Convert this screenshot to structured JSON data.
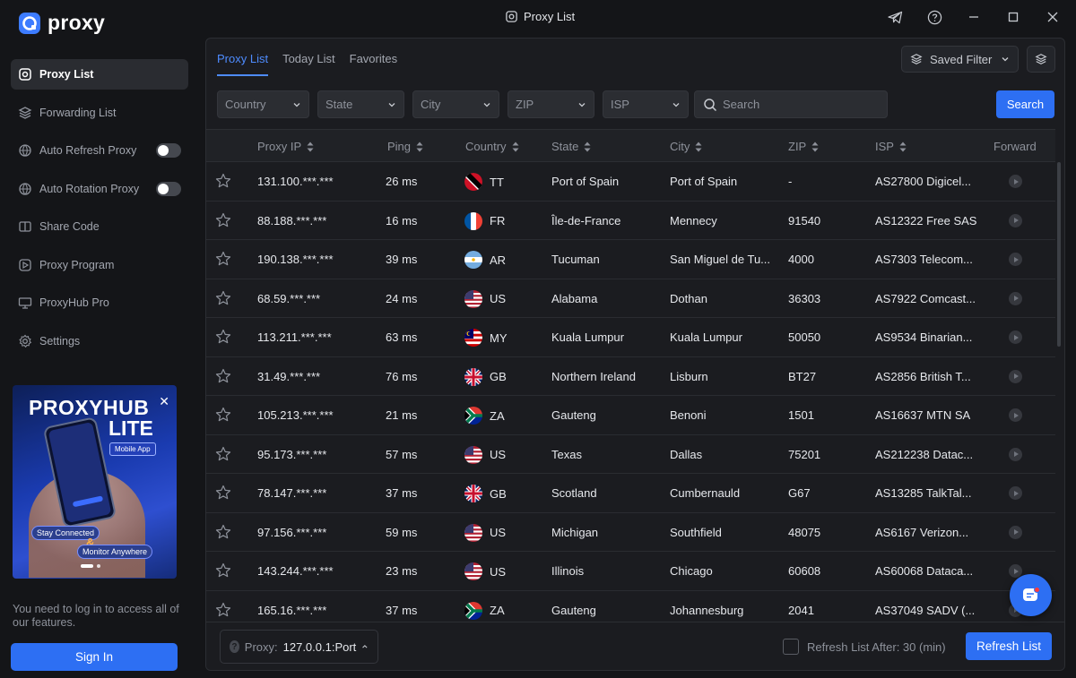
{
  "app": {
    "logo_text": "proxy",
    "window_title": "Proxy List"
  },
  "sidebar": {
    "items": [
      {
        "label": "Proxy List",
        "icon": "proxy-list-icon",
        "active": true
      },
      {
        "label": "Forwarding List",
        "icon": "layers-icon"
      },
      {
        "label": "Auto Refresh Proxy",
        "icon": "refresh-globe-icon",
        "toggle": false
      },
      {
        "label": "Auto Rotation Proxy",
        "icon": "rotation-globe-icon",
        "toggle": false
      },
      {
        "label": "Share Code",
        "icon": "share-code-icon"
      },
      {
        "label": "Proxy Program",
        "icon": "program-icon"
      },
      {
        "label": "ProxyHub Pro",
        "icon": "monitor-icon"
      },
      {
        "label": "Settings",
        "icon": "gear-icon"
      }
    ],
    "promo": {
      "title_line1": "PROXYHUB",
      "title_line2": "LITE",
      "badge": "Mobile App",
      "tag1": "Stay Connected",
      "amp": "&",
      "tag2": "Monitor Anywhere"
    },
    "login_note": "You need to log in to access all of our features.",
    "sign_in": "Sign In"
  },
  "tabs": [
    "Proxy List",
    "Today List",
    "Favorites"
  ],
  "active_tab": 0,
  "saved_filter": "Saved Filter",
  "filters": {
    "country": "Country",
    "state": "State",
    "city": "City",
    "zip": "ZIP",
    "isp": "ISP",
    "search_placeholder": "Search",
    "search_button": "Search"
  },
  "table": {
    "columns": [
      "Proxy IP",
      "Ping",
      "Country",
      "State",
      "City",
      "ZIP",
      "ISP",
      "Forward"
    ],
    "rows": [
      {
        "ip": "131.100.***.***",
        "ping": "26 ms",
        "country": "TT",
        "state": "Port of Spain",
        "city": "Port of Spain",
        "zip": "-",
        "isp": "AS27800 Digicel..."
      },
      {
        "ip": "88.188.***.***",
        "ping": "16 ms",
        "country": "FR",
        "state": "Île-de-France",
        "city": "Mennecy",
        "zip": "91540",
        "isp": "AS12322 Free SAS"
      },
      {
        "ip": "190.138.***.***",
        "ping": "39 ms",
        "country": "AR",
        "state": "Tucuman",
        "city": "San Miguel de Tu...",
        "zip": "4000",
        "isp": "AS7303 Telecom..."
      },
      {
        "ip": "68.59.***.***",
        "ping": "24 ms",
        "country": "US",
        "state": "Alabama",
        "city": "Dothan",
        "zip": "36303",
        "isp": "AS7922 Comcast..."
      },
      {
        "ip": "113.211.***.***",
        "ping": "63 ms",
        "country": "MY",
        "state": "Kuala Lumpur",
        "city": "Kuala Lumpur",
        "zip": "50050",
        "isp": "AS9534 Binarian..."
      },
      {
        "ip": "31.49.***.***",
        "ping": "76 ms",
        "country": "GB",
        "state": "Northern Ireland",
        "city": "Lisburn",
        "zip": "BT27",
        "isp": "AS2856 British T..."
      },
      {
        "ip": "105.213.***.***",
        "ping": "21 ms",
        "country": "ZA",
        "state": "Gauteng",
        "city": "Benoni",
        "zip": "1501",
        "isp": "AS16637 MTN SA"
      },
      {
        "ip": "95.173.***.***",
        "ping": "57 ms",
        "country": "US",
        "state": "Texas",
        "city": "Dallas",
        "zip": "75201",
        "isp": "AS212238 Datac..."
      },
      {
        "ip": "78.147.***.***",
        "ping": "37 ms",
        "country": "GB",
        "state": "Scotland",
        "city": "Cumbernauld",
        "zip": "G67",
        "isp": "AS13285 TalkTal..."
      },
      {
        "ip": "97.156.***.***",
        "ping": "59 ms",
        "country": "US",
        "state": "Michigan",
        "city": "Southfield",
        "zip": "48075",
        "isp": "AS6167 Verizon..."
      },
      {
        "ip": "143.244.***.***",
        "ping": "23 ms",
        "country": "US",
        "state": "Illinois",
        "city": "Chicago",
        "zip": "60608",
        "isp": "AS60068 Dataca..."
      },
      {
        "ip": "165.16.***.***",
        "ping": "37 ms",
        "country": "ZA",
        "state": "Gauteng",
        "city": "Johannesburg",
        "zip": "2041",
        "isp": "AS37049 SADV (..."
      }
    ]
  },
  "footer": {
    "proxy_label": "Proxy:",
    "proxy_value": "127.0.0.1:Port",
    "refresh_after": "Refresh List After: 30 (min)",
    "refresh_button": "Refresh List"
  },
  "colors": {
    "accent": "#2d6ff3",
    "tab_active": "#4e8cff",
    "background": "#141518",
    "panel": "#1b1c20"
  }
}
